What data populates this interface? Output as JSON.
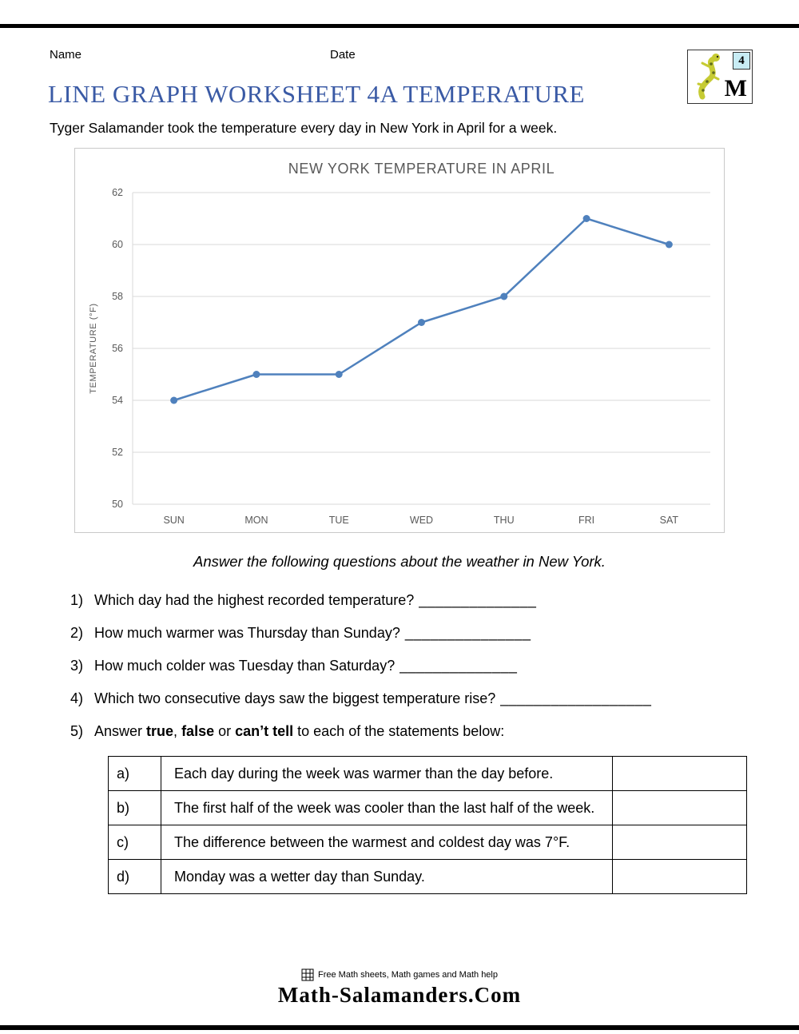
{
  "header": {
    "name_label": "Name",
    "date_label": "Date",
    "logo": {
      "grade": "4",
      "letter": "M"
    }
  },
  "title": "LINE GRAPH WORKSHEET 4A TEMPERATURE",
  "intro": "Tyger Salamander took the temperature every day in New York in April for a week.",
  "chart_data": {
    "type": "line",
    "title": "NEW YORK TEMPERATURE IN APRIL",
    "categories": [
      "SUN",
      "MON",
      "TUE",
      "WED",
      "THU",
      "FRI",
      "SAT"
    ],
    "values": [
      54,
      55,
      55,
      57,
      58,
      61,
      60
    ],
    "xlabel": "",
    "ylabel": "TEMPERATURE (°F)",
    "ylim": [
      50,
      62
    ],
    "ytick_step": 2,
    "grid": true,
    "legend": "none",
    "line_color": "#4f81bd"
  },
  "questions": {
    "instruction": "Answer the following questions about the weather in New York.",
    "items": [
      {
        "num": "1)",
        "text": "Which day had the highest recorded temperature?",
        "blank": "______________"
      },
      {
        "num": "2)",
        "text": "How much warmer was Thursday than Sunday?",
        "blank": "_______________"
      },
      {
        "num": "3)",
        "text": "How much colder was Tuesday than Saturday?",
        "blank": "______________"
      },
      {
        "num": "4)",
        "text": "Which two consecutive days saw the biggest temperature rise?",
        "blank": "__________________"
      }
    ],
    "q5": {
      "num": "5)",
      "prefix": "Answer ",
      "opt1": "true",
      "sep1": ", ",
      "opt2": "false",
      "sep2": " or ",
      "opt3": "can’t tell",
      "suffix": " to each of the statements below:"
    }
  },
  "table": {
    "rows": [
      {
        "letter": "a)",
        "statement": "Each day during the week was warmer than the day before.",
        "answer": ""
      },
      {
        "letter": "b)",
        "statement": "The first half of the week was cooler than the last half of the week.",
        "answer": ""
      },
      {
        "letter": "c)",
        "statement": "The difference between the warmest and coldest day was 7°F.",
        "answer": ""
      },
      {
        "letter": "d)",
        "statement": "Monday was a wetter day than Sunday.",
        "answer": ""
      }
    ]
  },
  "footer": {
    "tagline": "Free Math sheets, Math games and Math help",
    "site": "Math-Salamanders.Com"
  }
}
